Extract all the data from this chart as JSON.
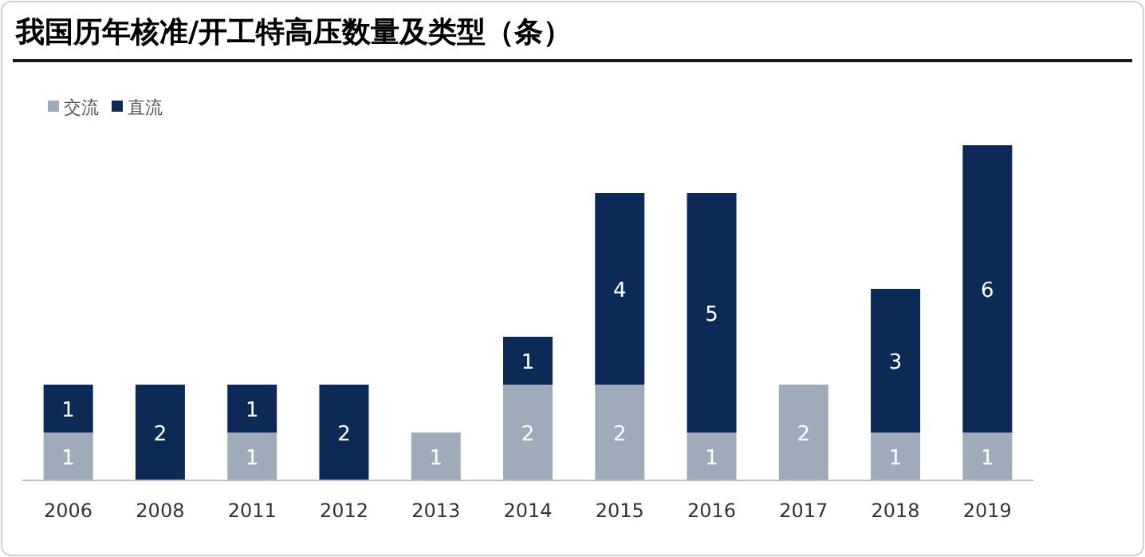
{
  "chart_data": {
    "type": "bar",
    "title": "我国历年核准/开工特高压数量及类型（条）",
    "stacked": true,
    "data_labels": true,
    "legend": "top left",
    "categories": [
      "2006",
      "2008",
      "2011",
      "2012",
      "2013",
      "2014",
      "2015",
      "2016",
      "2017",
      "2018",
      "2019"
    ],
    "series": [
      {
        "name": "交流",
        "color": "#9dabbb",
        "values": [
          1,
          null,
          1,
          null,
          1,
          2,
          2,
          1,
          2,
          1,
          1
        ]
      },
      {
        "name": "直流",
        "color": "#0c2a55",
        "values": [
          1,
          2,
          1,
          2,
          null,
          1,
          4,
          5,
          null,
          3,
          6
        ]
      }
    ]
  }
}
